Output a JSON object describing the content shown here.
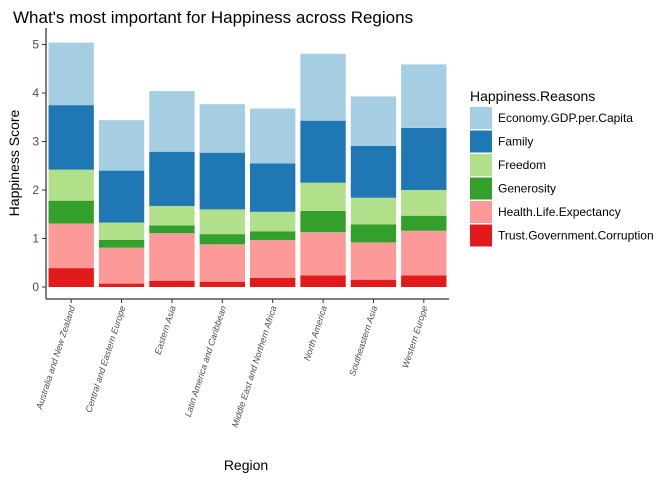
{
  "chart_data": {
    "type": "bar",
    "stacked": true,
    "title": "What's most important for Happiness across Regions",
    "xlabel": "Region",
    "ylabel": "Happiness Score",
    "ylim": [
      0,
      5.2
    ],
    "yticks": [
      "0",
      "1",
      "2",
      "3",
      "4",
      "5"
    ],
    "grid": false,
    "legend": {
      "title": "Happiness.Reasons",
      "position": "right"
    },
    "categories": [
      "Australia and New Zealand",
      "Central and Eastern Europe",
      "Eastern Asia",
      "Latin America and Caribbean",
      "Middle East and Northern Africa",
      "North America",
      "Southeastern Asia",
      "Western Europe"
    ],
    "series": [
      {
        "name": "Economy.GDP.per.Capita",
        "color": "#a6cee3",
        "values": [
          1.29,
          1.04,
          1.25,
          1.0,
          1.13,
          1.38,
          1.02,
          1.31
        ]
      },
      {
        "name": "Family",
        "color": "#1f78b4",
        "values": [
          1.33,
          1.07,
          1.12,
          1.17,
          1.0,
          1.28,
          1.07,
          1.28
        ]
      },
      {
        "name": "Freedom",
        "color": "#b2df8a",
        "values": [
          0.64,
          0.36,
          0.4,
          0.51,
          0.4,
          0.58,
          0.55,
          0.53
        ]
      },
      {
        "name": "Generosity",
        "color": "#33a02c",
        "values": [
          0.47,
          0.16,
          0.16,
          0.21,
          0.18,
          0.44,
          0.37,
          0.31
        ]
      },
      {
        "name": "Health.Life.Expectancy",
        "color": "#fb9a99",
        "values": [
          0.92,
          0.74,
          0.98,
          0.77,
          0.78,
          0.89,
          0.77,
          0.92
        ]
      },
      {
        "name": "Trust.Government.Corruption",
        "color": "#e31a1c",
        "values": [
          0.39,
          0.07,
          0.13,
          0.11,
          0.19,
          0.24,
          0.15,
          0.24
        ]
      }
    ],
    "stack_order_bottom_to_top": [
      "Trust.Government.Corruption",
      "Health.Life.Expectancy",
      "Generosity",
      "Freedom",
      "Family",
      "Economy.GDP.per.Capita"
    ]
  }
}
